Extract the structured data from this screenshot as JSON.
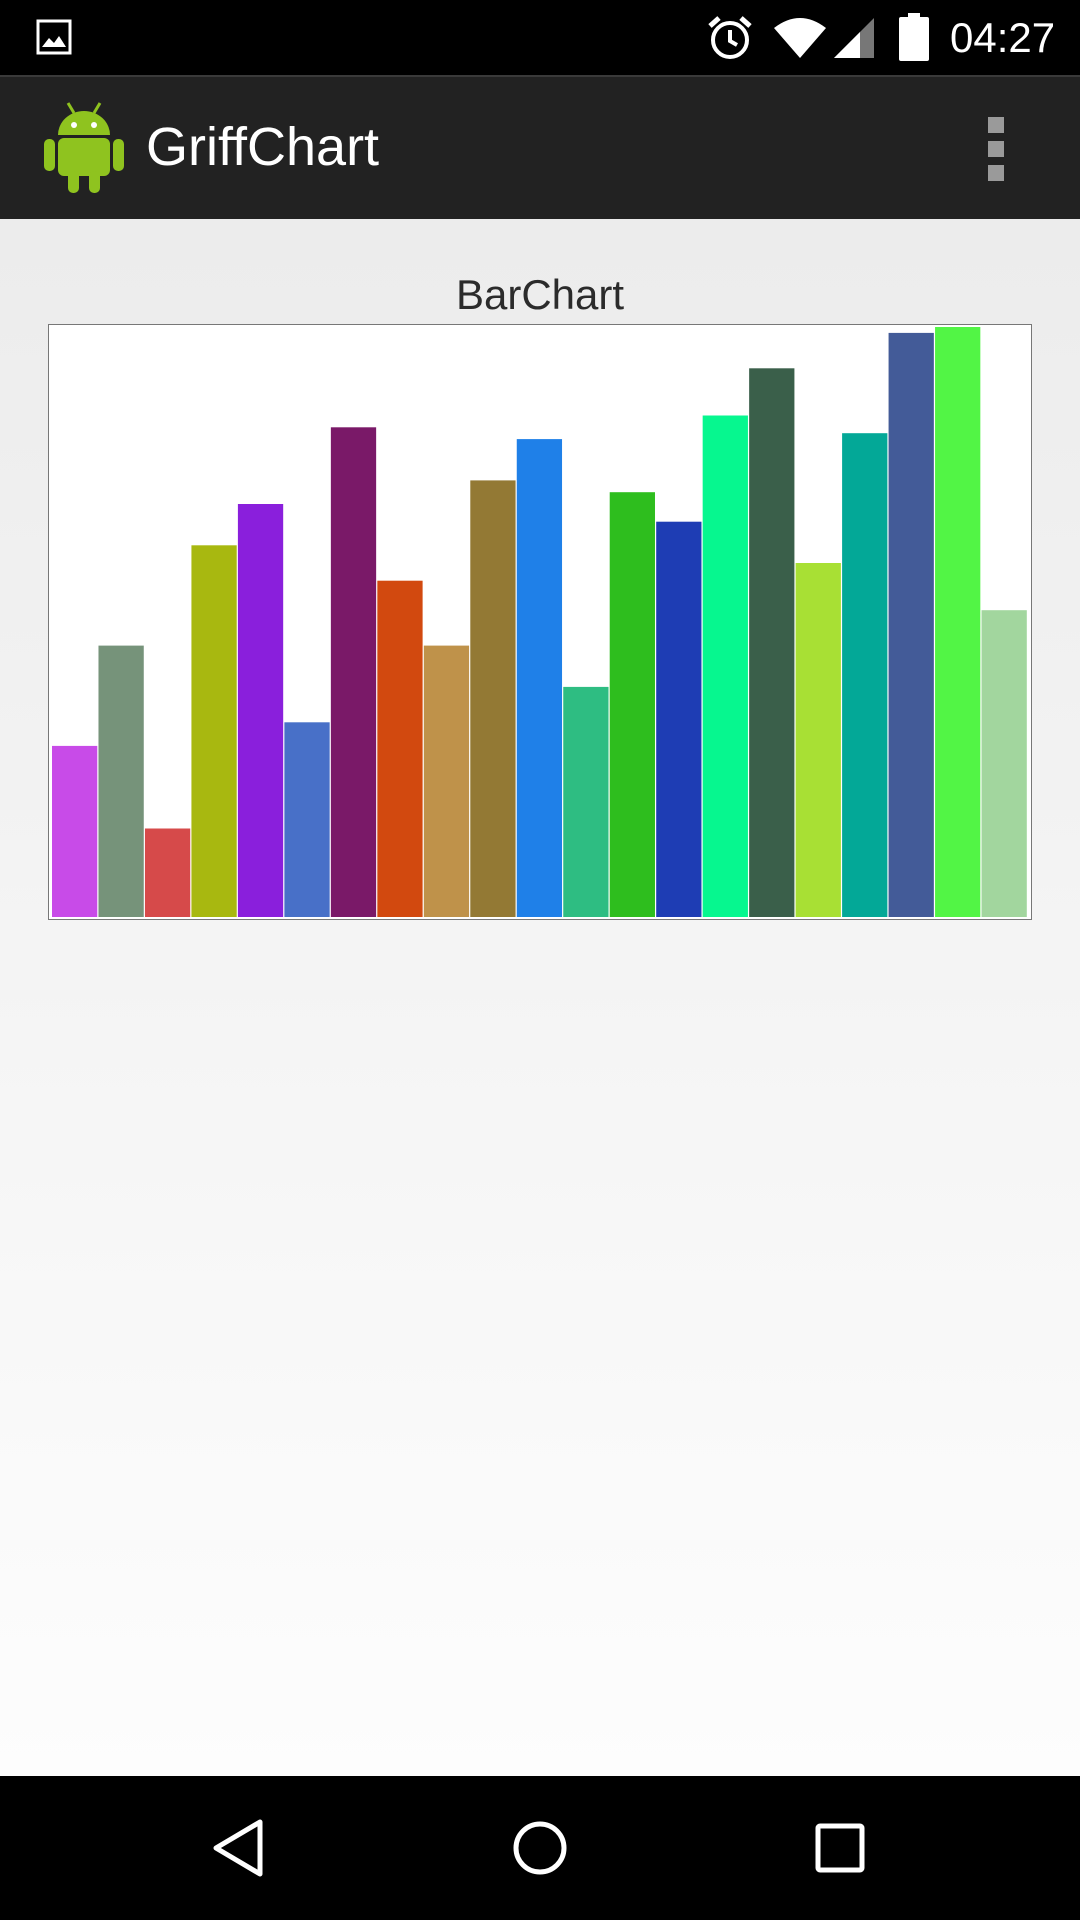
{
  "status_bar": {
    "time": "04:27",
    "icons": [
      "gallery-icon",
      "alarm-icon",
      "wifi-icon",
      "signal-icon",
      "battery-icon"
    ]
  },
  "action_bar": {
    "app_title": "GriffChart",
    "logo_icon": "android-robot-icon",
    "overflow_icon": "overflow-menu-icon",
    "background": "#222222"
  },
  "chart_title": "BarChart",
  "chart_data": {
    "type": "bar",
    "title": "BarChart",
    "ylim": [
      0,
      100
    ],
    "grid": false,
    "legend": "none",
    "values": [
      29,
      46,
      15,
      63,
      70,
      33,
      83,
      57,
      46,
      74,
      81,
      39,
      72,
      67,
      85,
      93,
      60,
      82,
      99,
      100,
      52
    ],
    "colors": [
      "#c84be8",
      "#76937a",
      "#d64a4a",
      "#a8b810",
      "#8a1fdc",
      "#4870c8",
      "#7a1968",
      "#d2490f",
      "#bf924a",
      "#937934",
      "#1f80e8",
      "#2ebd82",
      "#2ebe1e",
      "#1e3db4",
      "#06f78f",
      "#3a5f4a",
      "#a8e034",
      "#03a897",
      "#435b98",
      "#52f545",
      "#a2d69e"
    ]
  },
  "nav_bar": {
    "buttons": [
      "back-icon",
      "home-icon",
      "recents-icon"
    ]
  }
}
